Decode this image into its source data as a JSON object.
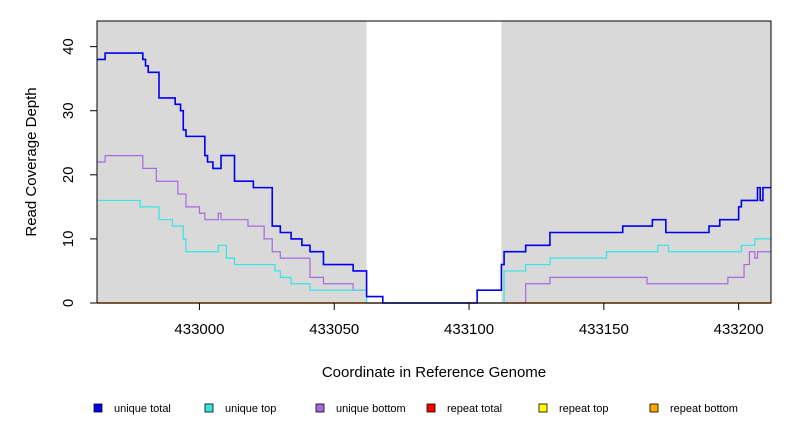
{
  "chart_data": {
    "type": "line",
    "step": true,
    "xlabel": "Coordinate in Reference Genome",
    "ylabel": "Read Coverage Depth",
    "xlim": [
      432962,
      433212
    ],
    "ylim": [
      0,
      44
    ],
    "x_ticks": [
      433000,
      433050,
      433100,
      433150,
      433200
    ],
    "y_ticks": [
      0,
      10,
      20,
      30,
      40
    ],
    "shaded_regions": [
      [
        432962,
        433062
      ],
      [
        433112,
        433212
      ]
    ],
    "colors": {
      "shade": "#d9d9d9",
      "unique_total": "#0000ee",
      "unique_top": "#33e5e5",
      "unique_bottom": "#a56ae0",
      "repeat_total": "#ff0000",
      "repeat_top": "#ffff00",
      "repeat_bottom": "#ffa500"
    },
    "series": [
      {
        "name": "unique total",
        "color": "#0000ee",
        "x": [
          432962,
          432965,
          432979,
          432980,
          432981,
          432985,
          432991,
          432993,
          432994,
          432995,
          433002,
          433003,
          433005,
          433008,
          433013,
          433020,
          433027,
          433030,
          433034,
          433038,
          433041,
          433046,
          433057,
          433062,
          433068,
          433103,
          433112,
          433113,
          433121,
          433130,
          433157,
          433168,
          433173,
          433189,
          433193,
          433200,
          433201,
          433207,
          433208,
          433209,
          433212
        ],
        "y": [
          38,
          39,
          38,
          37,
          36,
          32,
          31,
          30,
          27,
          26,
          23,
          22,
          21,
          23,
          19,
          18,
          12,
          11,
          10,
          9,
          8,
          6,
          5,
          1,
          0,
          2,
          6,
          8,
          9,
          11,
          12,
          13,
          11,
          12,
          13,
          15,
          16,
          18,
          16,
          18,
          18
        ]
      },
      {
        "name": "unique top",
        "color": "#33e5e5",
        "x": [
          432962,
          432978,
          432985,
          432990,
          432994,
          432995,
          433007,
          433010,
          433013,
          433028,
          433030,
          433034,
          433041,
          433046,
          433062,
          433112,
          433113,
          433121,
          433130,
          433151,
          433170,
          433174,
          433201,
          433202,
          433206,
          433212
        ],
        "y": [
          16,
          15,
          13,
          12,
          10,
          8,
          9,
          7,
          6,
          5,
          4,
          3,
          2,
          2,
          0,
          0,
          5,
          6,
          7,
          8,
          9,
          8,
          9,
          9,
          10,
          10
        ]
      },
      {
        "name": "unique bottom",
        "color": "#a56ae0",
        "x": [
          432962,
          432965,
          432979,
          432984,
          432992,
          432995,
          433000,
          433002,
          433007,
          433008,
          433010,
          433018,
          433024,
          433027,
          433030,
          433041,
          433046,
          433057,
          433062,
          433112,
          433121,
          433130,
          433166,
          433196,
          433202,
          433204,
          433206,
          433207,
          433212
        ],
        "y": [
          22,
          23,
          21,
          19,
          17,
          15,
          14,
          13,
          14,
          13,
          13,
          12,
          10,
          8,
          7,
          4,
          3,
          2,
          0,
          0,
          3,
          4,
          3,
          4,
          6,
          8,
          7,
          8,
          8
        ]
      },
      {
        "name": "repeat total",
        "color": "#ff0000",
        "x": [
          432962,
          433212
        ],
        "y": [
          0,
          0
        ]
      },
      {
        "name": "repeat top",
        "color": "#ffff00",
        "x": [
          432962,
          433212
        ],
        "y": [
          0,
          0
        ]
      },
      {
        "name": "repeat bottom",
        "color": "#ffa500",
        "x": [
          432962,
          433212
        ],
        "y": [
          0,
          0
        ]
      }
    ],
    "legend_placement": "bottom"
  }
}
